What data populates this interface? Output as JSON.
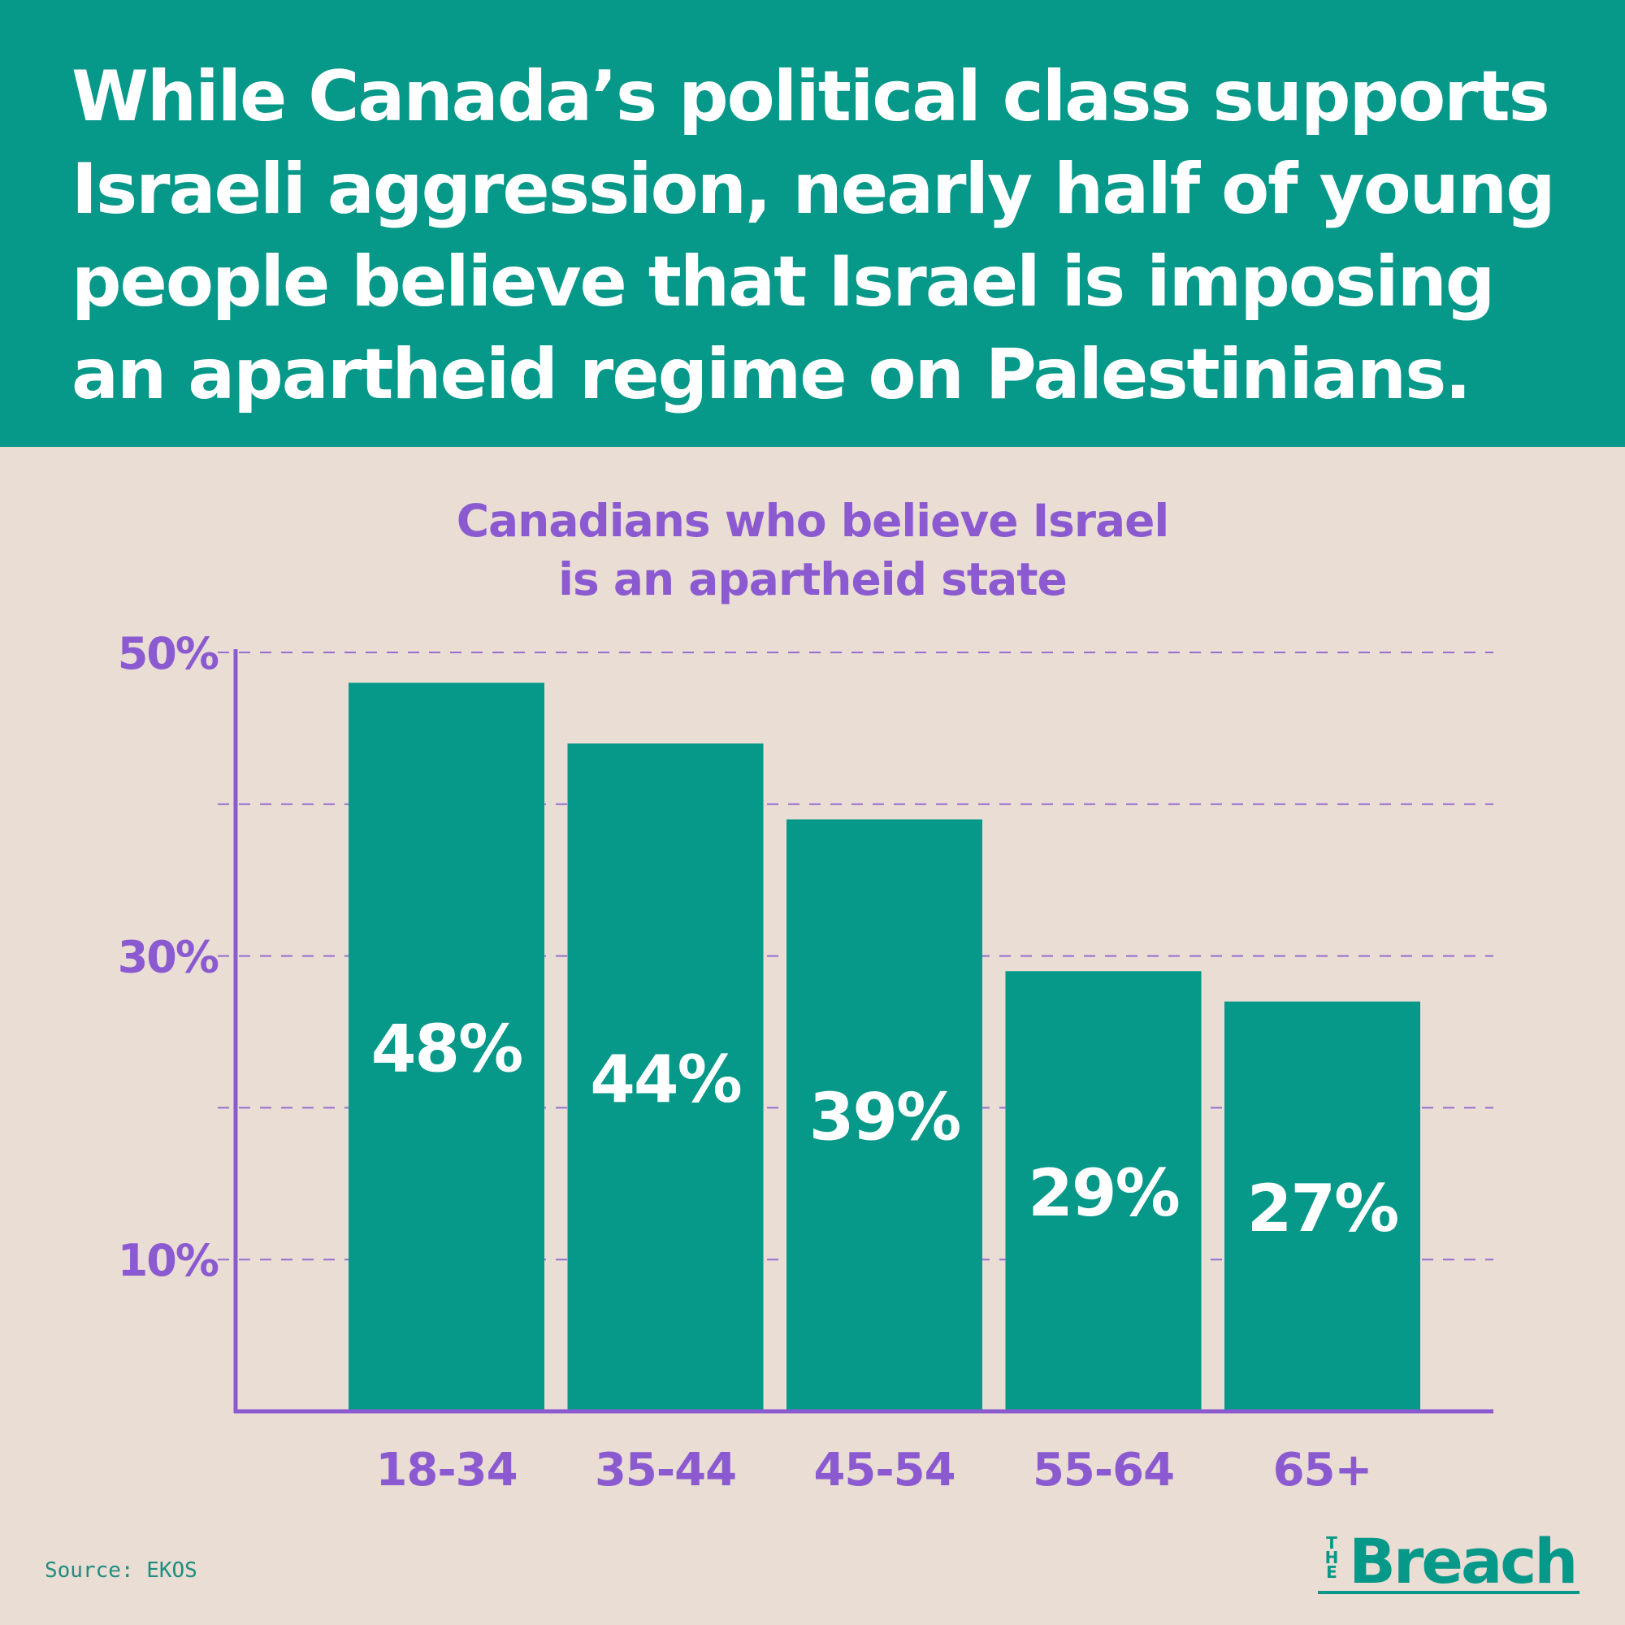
{
  "headline": "While Canada’s political class supports Israeli aggression, nearly half of young people believe that Israel is imposing an apartheid regime on Palestinians.",
  "colors": {
    "brand_green": "#069888",
    "purple": "#8b5ad0",
    "background": "#e9ddd4",
    "bar_label": "#ffffff"
  },
  "chart_data": {
    "type": "bar",
    "title": "Canadians who believe Israel is an apartheid state",
    "title_lines": [
      "Canadians who believe Israel",
      "is an apartheid state"
    ],
    "categories": [
      "18-34",
      "35-44",
      "45-54",
      "55-64",
      "65+"
    ],
    "values": [
      48,
      44,
      39,
      29,
      27
    ],
    "value_labels": [
      "48%",
      "44%",
      "39%",
      "29%",
      "27%"
    ],
    "ylim": [
      0,
      50
    ],
    "yticks": [
      {
        "value": 50,
        "label": "50%"
      },
      {
        "value": 30,
        "label": "30%"
      },
      {
        "value": 10,
        "label": "10%"
      }
    ],
    "gridlines": [
      50,
      40,
      30,
      20,
      10
    ],
    "grid": "dashed",
    "xlabel": "",
    "ylabel": ""
  },
  "source": "Source: EKOS",
  "logo": {
    "small": "THE",
    "word": "Breach"
  }
}
